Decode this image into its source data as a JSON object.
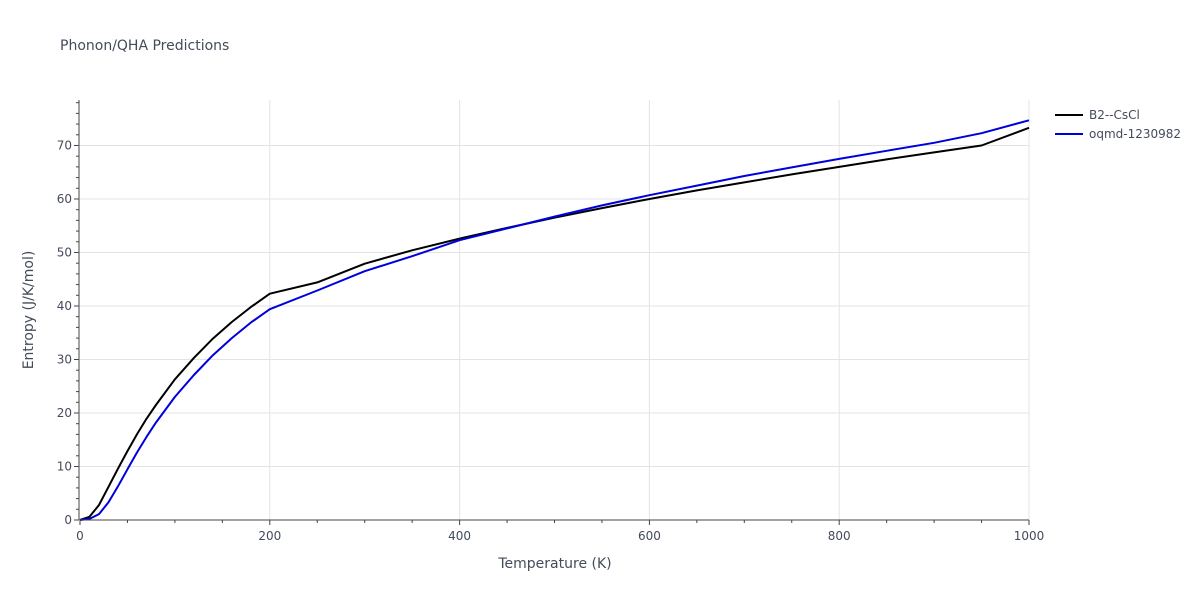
{
  "chart_data": {
    "type": "line",
    "title": "Phonon/QHA Predictions",
    "xlabel": "Temperature (K)",
    "ylabel": "Entropy (J/K/mol)",
    "xlim": [
      0,
      1000
    ],
    "ylim": [
      0,
      78.5
    ],
    "xticks": [
      0,
      200,
      400,
      600,
      800,
      1000
    ],
    "yticks": [
      0,
      10,
      20,
      30,
      40,
      50,
      60,
      70
    ],
    "grid": true,
    "legend_position": "top-right",
    "series": [
      {
        "name": "B2--CsCl",
        "color": "#000000",
        "x": [
          0,
          10,
          20,
          30,
          40,
          50,
          60,
          70,
          80,
          100,
          120,
          140,
          160,
          180,
          200,
          250,
          300,
          350,
          400,
          450,
          500,
          550,
          600,
          650,
          700,
          750,
          800,
          850,
          900,
          950,
          1000
        ],
        "y": [
          0,
          0.6,
          2.8,
          6.2,
          9.6,
          12.9,
          16.0,
          18.9,
          21.5,
          26.3,
          30.3,
          33.9,
          37.0,
          39.8,
          42.3,
          44.4,
          47.9,
          50.4,
          52.6,
          54.6,
          56.5,
          58.3,
          60.0,
          61.6,
          63.1,
          64.6,
          66.0,
          67.4,
          68.7,
          70.0,
          73.3
        ]
      },
      {
        "name": "oqmd-1230982",
        "color": "#0000dd",
        "x": [
          0,
          10,
          20,
          30,
          40,
          50,
          60,
          70,
          80,
          100,
          120,
          140,
          160,
          180,
          200,
          250,
          300,
          350,
          400,
          450,
          500,
          550,
          600,
          650,
          700,
          750,
          800,
          850,
          900,
          950,
          1000
        ],
        "y": [
          0,
          0.2,
          1.1,
          3.3,
          6.3,
          9.5,
          12.6,
          15.5,
          18.2,
          23.0,
          27.1,
          30.8,
          34.0,
          36.9,
          39.4,
          42.9,
          46.5,
          49.3,
          52.3,
          54.5,
          56.7,
          58.8,
          60.7,
          62.5,
          64.3,
          65.9,
          67.5,
          69.0,
          70.5,
          72.3,
          74.7
        ]
      }
    ]
  }
}
